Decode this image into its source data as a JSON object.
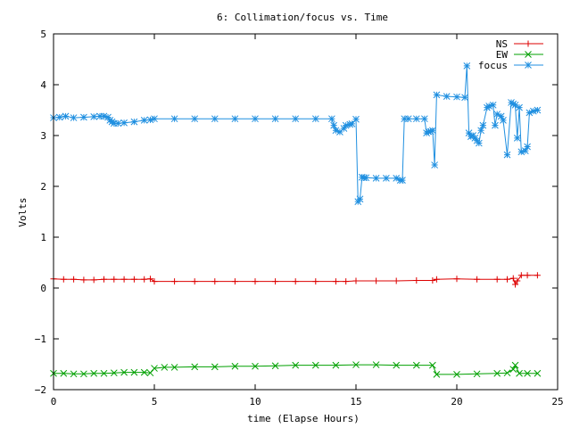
{
  "chart_data": {
    "type": "line",
    "title": "6: Collimation/focus vs. Time",
    "xlabel": "time (Elapse Hours)",
    "ylabel": "Volts",
    "xlim": [
      0,
      25
    ],
    "ylim": [
      -2,
      5
    ],
    "xticks": [
      0,
      5,
      10,
      15,
      20,
      25
    ],
    "yticks": [
      -2,
      -1,
      0,
      1,
      2,
      3,
      4,
      5
    ],
    "xtick_labels": [
      "0",
      "5",
      "10",
      "15",
      "20",
      "25"
    ],
    "ytick_labels": [
      "−2",
      "−1",
      "0",
      "1",
      "2",
      "3",
      "4",
      "5"
    ],
    "grid": false,
    "legend_position": "top-right",
    "series": [
      {
        "name": "NS",
        "color": "#dd0000",
        "marker": "plus",
        "x": [
          0,
          0.5,
          1,
          1.5,
          2,
          2.5,
          3,
          3.5,
          4,
          4.5,
          4.8,
          5.0,
          6,
          7,
          8,
          9,
          10,
          11,
          12,
          13,
          14,
          14.5,
          15,
          16,
          17,
          18,
          18.8,
          19,
          20,
          21,
          22,
          22.5,
          22.8,
          22.9,
          23.0,
          23.2,
          23.5,
          24.0
        ],
        "y": [
          0.18,
          0.17,
          0.17,
          0.16,
          0.16,
          0.17,
          0.17,
          0.17,
          0.17,
          0.17,
          0.18,
          0.13,
          0.13,
          0.13,
          0.13,
          0.13,
          0.13,
          0.13,
          0.13,
          0.13,
          0.13,
          0.13,
          0.14,
          0.14,
          0.14,
          0.15,
          0.15,
          0.17,
          0.18,
          0.17,
          0.17,
          0.17,
          0.19,
          0.07,
          0.14,
          0.25,
          0.25,
          0.25
        ]
      },
      {
        "name": "EW",
        "color": "#00a000",
        "marker": "cross",
        "x": [
          0,
          0.5,
          1,
          1.5,
          2,
          2.5,
          3,
          3.5,
          4,
          4.5,
          4.8,
          5.0,
          5.5,
          6,
          7,
          8,
          9,
          10,
          11,
          12,
          13,
          14,
          15,
          16,
          17,
          18,
          18.8,
          19.0,
          20,
          21,
          22,
          22.5,
          22.8,
          22.9,
          23.1,
          23.5,
          24.0
        ],
        "y": [
          -1.68,
          -1.68,
          -1.69,
          -1.69,
          -1.68,
          -1.68,
          -1.67,
          -1.66,
          -1.66,
          -1.66,
          -1.67,
          -1.58,
          -1.56,
          -1.56,
          -1.55,
          -1.55,
          -1.54,
          -1.54,
          -1.53,
          -1.52,
          -1.52,
          -1.52,
          -1.51,
          -1.51,
          -1.52,
          -1.52,
          -1.52,
          -1.7,
          -1.7,
          -1.69,
          -1.68,
          -1.67,
          -1.6,
          -1.52,
          -1.68,
          -1.68,
          -1.68
        ]
      },
      {
        "name": "focus",
        "color": "#1f8fe0",
        "marker": "star",
        "x": [
          0,
          0.3,
          0.6,
          1,
          1.5,
          2,
          2.3,
          2.5,
          2.7,
          2.8,
          2.9,
          3.0,
          3.2,
          3.5,
          4,
          4.5,
          4.8,
          5.0,
          6,
          7,
          8,
          9,
          10,
          11,
          12,
          13,
          13.8,
          13.9,
          14.0,
          14.2,
          14.4,
          14.5,
          14.7,
          14.8,
          15.0,
          15.1,
          15.2,
          15.3,
          15.4,
          15.5,
          16,
          16.5,
          17,
          17.2,
          17.3,
          17.4,
          17.6,
          18,
          18.4,
          18.5,
          18.6,
          18.7,
          18.8,
          18.9,
          19.0,
          19.5,
          20,
          20.4,
          20.5,
          20.6,
          20.7,
          20.8,
          20.9,
          21.0,
          21.1,
          21.2,
          21.3,
          21.5,
          21.6,
          21.8,
          21.9,
          22.0,
          22.2,
          22.3,
          22.5,
          22.7,
          22.8,
          22.9,
          23.0,
          23.1,
          23.2,
          23.4,
          23.5,
          23.6,
          23.8,
          24.0
        ],
        "y": [
          3.35,
          3.36,
          3.38,
          3.35,
          3.36,
          3.37,
          3.38,
          3.38,
          3.36,
          3.3,
          3.27,
          3.24,
          3.24,
          3.25,
          3.27,
          3.3,
          3.31,
          3.33,
          3.33,
          3.33,
          3.33,
          3.33,
          3.33,
          3.33,
          3.33,
          3.33,
          3.33,
          3.2,
          3.1,
          3.07,
          3.14,
          3.2,
          3.22,
          3.23,
          3.32,
          1.7,
          1.75,
          2.18,
          2.17,
          2.17,
          2.16,
          2.16,
          2.16,
          2.12,
          2.12,
          3.33,
          3.33,
          3.33,
          3.33,
          3.05,
          3.08,
          3.08,
          3.1,
          2.42,
          3.8,
          3.77,
          3.76,
          3.75,
          4.37,
          3.05,
          2.98,
          3.0,
          2.95,
          2.9,
          2.85,
          3.1,
          3.2,
          3.55,
          3.58,
          3.6,
          3.2,
          3.42,
          3.38,
          3.3,
          2.62,
          3.65,
          3.62,
          3.6,
          2.95,
          3.55,
          2.68,
          2.7,
          2.78,
          3.45,
          3.48,
          3.5
        ]
      }
    ]
  }
}
